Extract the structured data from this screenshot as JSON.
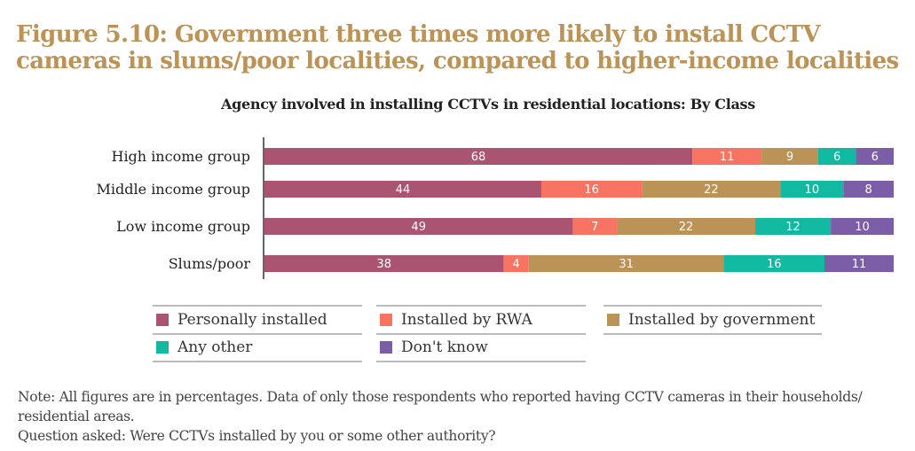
{
  "title": "Figure 5.10: Government three times more likely to install CCTV cameras in slums/poor localities, compared to higher-income localities",
  "chart_data": {
    "type": "bar",
    "orientation": "horizontal",
    "stacked": true,
    "title": "Agency involved in installing CCTVs in residential locations: By Class",
    "categories": [
      "High income group",
      "Middle income group",
      "Low income group",
      "Slums/poor"
    ],
    "series": [
      {
        "name": "Personally installed",
        "color": "#aa5472",
        "values": [
          68,
          44,
          49,
          38
        ]
      },
      {
        "name": "Installed by RWA",
        "color": "#f87462",
        "values": [
          11,
          16,
          7,
          4
        ]
      },
      {
        "name": "Installed by government",
        "color": "#bc9356",
        "values": [
          9,
          22,
          22,
          31
        ]
      },
      {
        "name": "Any other",
        "color": "#12b9a1",
        "values": [
          6,
          10,
          12,
          16
        ]
      },
      {
        "name": "Don't know",
        "color": "#7c5ea8",
        "values": [
          6,
          8,
          10,
          11
        ]
      }
    ],
    "xlabel": "",
    "ylabel": "",
    "unit": "percent",
    "legend_position": "bottom",
    "grid": false
  },
  "note_lines": [
    "Note: All figures are in percentages. Data of only those respondents who reported having CCTV cameras in their households/ residential areas.",
    "Question asked: Were CCTVs installed by you or some other authority?"
  ]
}
